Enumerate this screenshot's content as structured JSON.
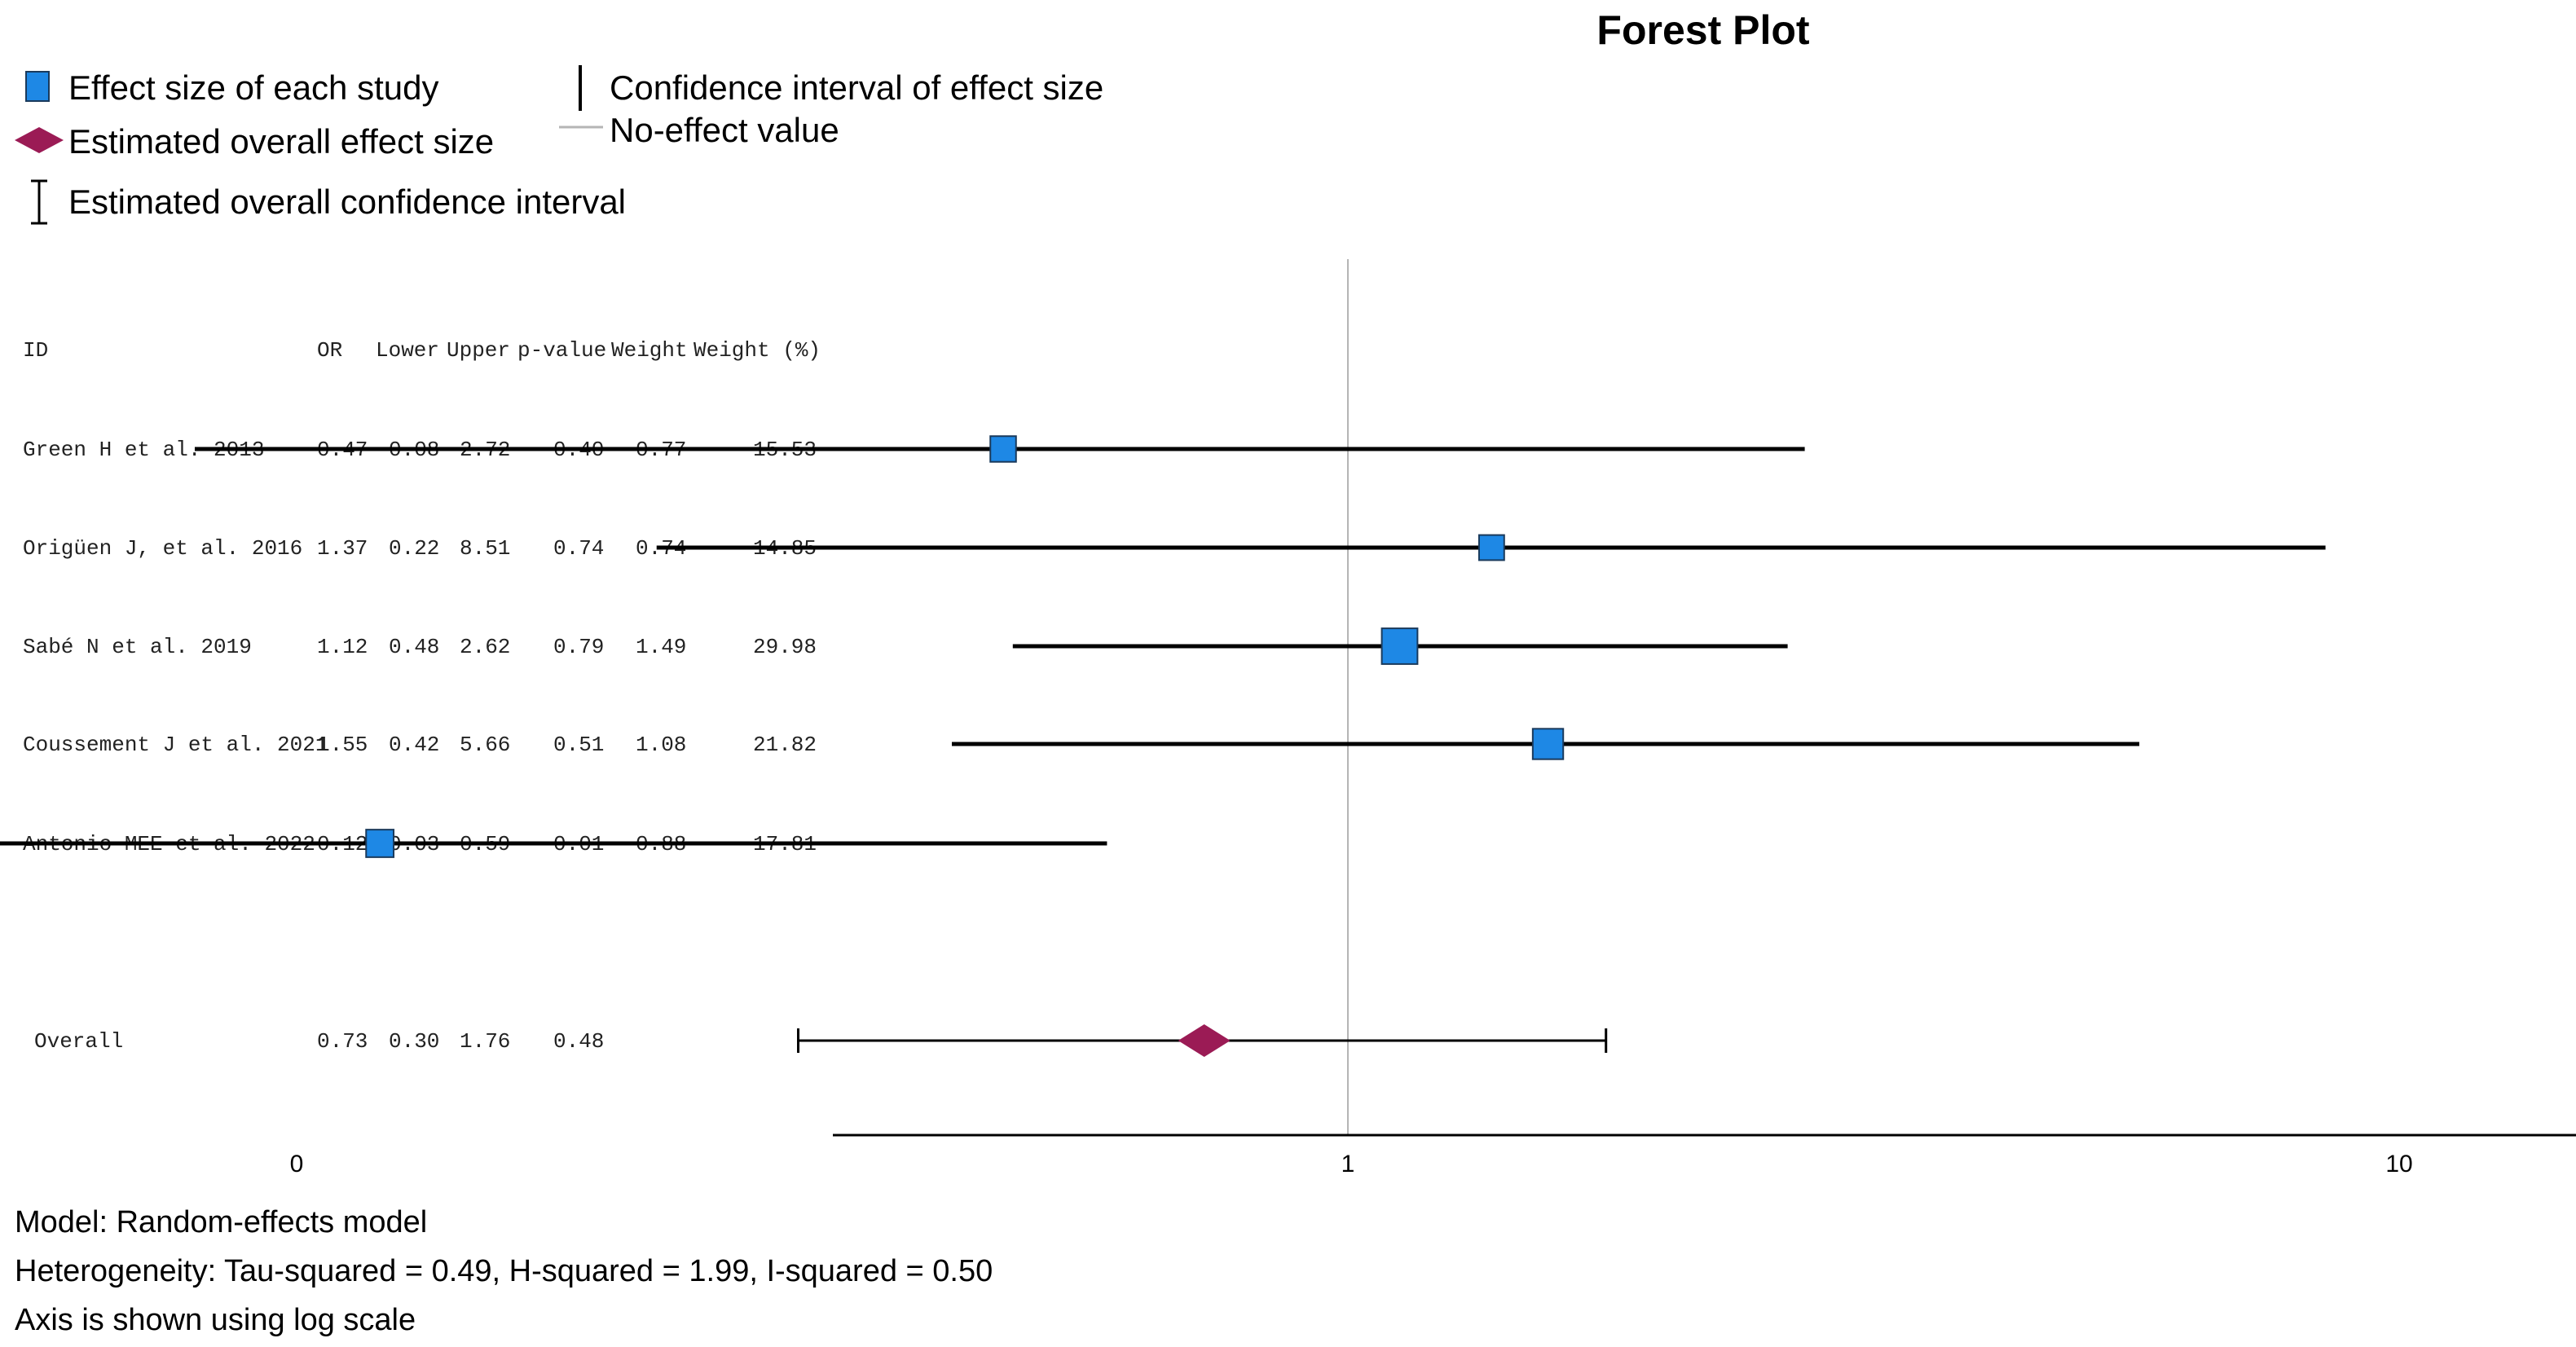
{
  "chart_data": {
    "type": "forest",
    "title": "Forest Plot",
    "legend": {
      "effect_size": "Effect size of each study",
      "overall_effect": "Estimated overall effect size",
      "overall_ci": "Estimated overall confidence interval",
      "ci": "Confidence interval of effect size",
      "no_effect": "No-effect value"
    },
    "columns": [
      "ID",
      "OR",
      "Lower",
      "Upper",
      "p-value",
      "Weight",
      "Weight (%)"
    ],
    "studies": [
      {
        "id": "Green H et al. 2013",
        "or": "0.47",
        "lower": "0.08",
        "upper": "2.72",
        "p": "0.40",
        "weight": "0.77",
        "weight_pct": "15.53",
        "or_value": 0.47,
        "lower_value": 0.08,
        "upper_value": 2.72,
        "weight_value": 15.53
      },
      {
        "id": "Origüen J, et al. 2016",
        "or": "1.37",
        "lower": "0.22",
        "upper": "8.51",
        "p": "0.74",
        "weight": "0.74",
        "weight_pct": "14.85",
        "or_value": 1.37,
        "lower_value": 0.22,
        "upper_value": 8.51,
        "weight_value": 14.85
      },
      {
        "id": "Sabé N et al. 2019",
        "or": "1.12",
        "lower": "0.48",
        "upper": "2.62",
        "p": "0.79",
        "weight": "1.49",
        "weight_pct": "29.98",
        "or_value": 1.12,
        "lower_value": 0.48,
        "upper_value": 2.62,
        "weight_value": 29.98
      },
      {
        "id": "Coussement J et al. 2021",
        "or": "1.55",
        "lower": "0.42",
        "upper": "5.66",
        "p": "0.51",
        "weight": "1.08",
        "weight_pct": "21.82",
        "or_value": 1.55,
        "lower_value": 0.42,
        "upper_value": 5.66,
        "weight_value": 21.82
      },
      {
        "id": "Antonio MEE et al. 2022",
        "or": "0.12",
        "lower": "0.03",
        "upper": "0.59",
        "p": "0.01",
        "weight": "0.88",
        "weight_pct": "17.81",
        "or_value": 0.12,
        "lower_value": 0.03,
        "upper_value": 0.59,
        "weight_value": 17.81
      }
    ],
    "overall": {
      "id": "Overall",
      "or": "0.73",
      "lower": "0.30",
      "upper": "1.76",
      "p": "0.48",
      "or_value": 0.73,
      "lower_value": 0.3,
      "upper_value": 1.76
    },
    "x_scale": "log",
    "no_effect_value": 1,
    "x_ticks": [
      {
        "label": "0",
        "value": 0.1
      },
      {
        "label": "1",
        "value": 1
      },
      {
        "label": "10",
        "value": 10
      }
    ],
    "footnotes": [
      "Model: Random-effects model",
      "Heterogeneity: Tau-squared = 0.49, H-squared = 1.99, I-squared = 0.50",
      "Axis is shown using log scale"
    ],
    "colors": {
      "study_marker": "#1e88e5",
      "study_marker_border": "#1a3a5c",
      "overall_marker": "#9b1b55",
      "ci_line": "#000000",
      "no_effect_line": "#b5b5b5"
    }
  }
}
